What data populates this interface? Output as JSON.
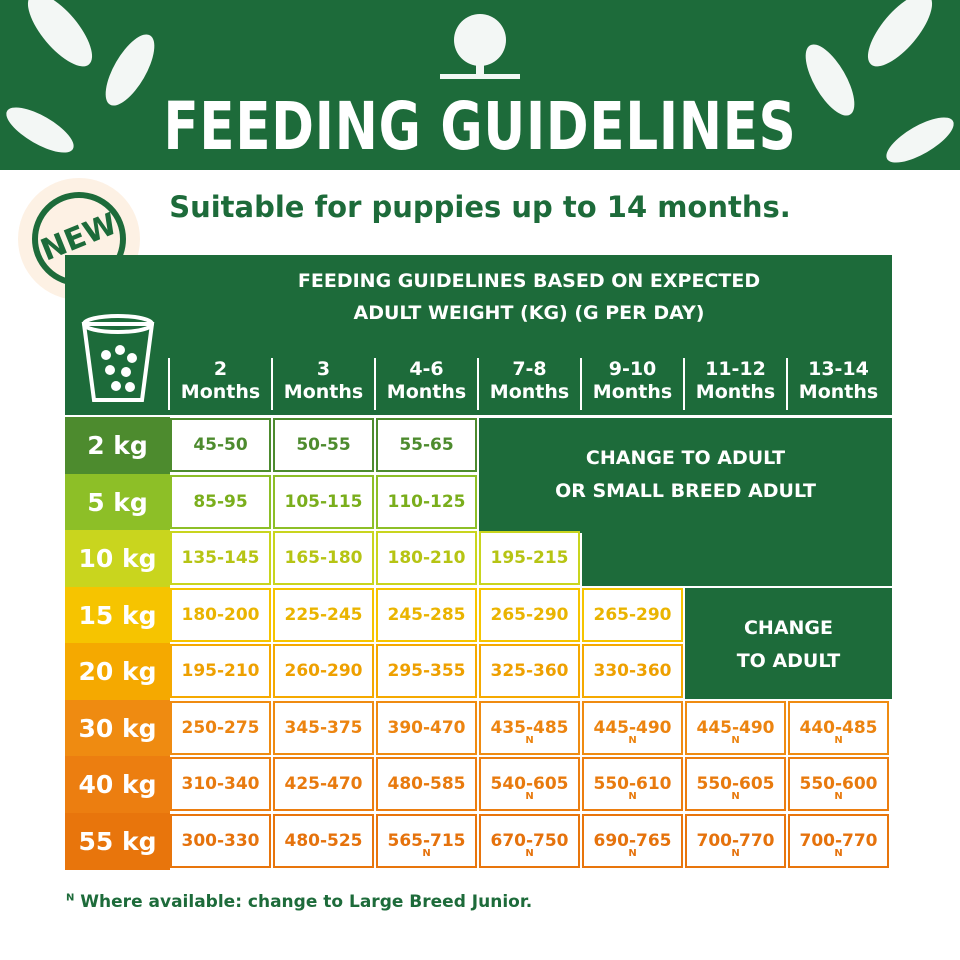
{
  "header": {
    "title": "FEEDING GUIDELINES",
    "subtitle": "Suitable for puppies up to 14 months.",
    "badge": "NEW"
  },
  "table": {
    "caption": [
      "FEEDING GUIDELINES BASED ON EXPECTED",
      "ADULT WEIGHT (KG) (G PER DAY)"
    ],
    "columns": [
      [
        "2",
        "Months"
      ],
      [
        "3",
        "Months"
      ],
      [
        "4-6",
        "Months"
      ],
      [
        "7-8",
        "Months"
      ],
      [
        "9-10",
        "Months"
      ],
      [
        "11-12",
        "Months"
      ],
      [
        "13-14",
        "Months"
      ]
    ],
    "rows": [
      {
        "weight": "2 kg",
        "color": "#4d8b2e",
        "text_color": "#4d8b2e",
        "cells": [
          "45-50",
          "50-55",
          "55-65"
        ]
      },
      {
        "weight": "5 kg",
        "color": "#8dbf27",
        "text_color": "#7aae1c",
        "cells": [
          "85-95",
          "105-115",
          "110-125"
        ]
      },
      {
        "weight": "10 kg",
        "color": "#c9d51e",
        "text_color": "#b6c414",
        "cells": [
          "135-145",
          "165-180",
          "180-210",
          "195-215"
        ]
      },
      {
        "weight": "15 kg",
        "color": "#f6c400",
        "text_color": "#eab400",
        "cells": [
          "180-200",
          "225-245",
          "245-285",
          "265-290",
          "265-290"
        ]
      },
      {
        "weight": "20 kg",
        "color": "#f5a900",
        "text_color": "#eea000",
        "cells": [
          "195-210",
          "260-290",
          "295-355",
          "325-360",
          "330-360"
        ]
      },
      {
        "weight": "30 kg",
        "color": "#ef8b11",
        "text_color": "#ec8410",
        "cells": [
          "250-275",
          "345-375",
          "390-470",
          {
            "text": "435-485",
            "note": true
          },
          {
            "text": "445-490",
            "note": true
          },
          {
            "text": "445-490",
            "note": true
          },
          {
            "text": "440-485",
            "note": true
          }
        ]
      },
      {
        "weight": "40 kg",
        "color": "#ec7e10",
        "text_color": "#e87a0e",
        "cells": [
          "310-340",
          "425-470",
          "480-585",
          {
            "text": "540-605",
            "note": true
          },
          {
            "text": "550-610",
            "note": true
          },
          {
            "text": "550-605",
            "note": true
          },
          {
            "text": "550-600",
            "note": true
          }
        ]
      },
      {
        "weight": "55 kg",
        "color": "#e8750c",
        "text_color": "#e5720c",
        "cells": [
          "300-330",
          "480-525",
          {
            "text": "565-715",
            "note": true
          },
          {
            "text": "670-750",
            "note": true
          },
          {
            "text": "690-765",
            "note": true
          },
          {
            "text": "700-770",
            "note": true
          },
          {
            "text": "700-770",
            "note": true
          }
        ]
      }
    ],
    "messages": [
      [
        "CHANGE TO ADULT",
        "OR SMALL BREED ADULT"
      ],
      [
        "CHANGE",
        "TO ADULT"
      ]
    ]
  },
  "footnote": {
    "mark": "N",
    "text": "Where available: change to Large Breed Junior."
  }
}
